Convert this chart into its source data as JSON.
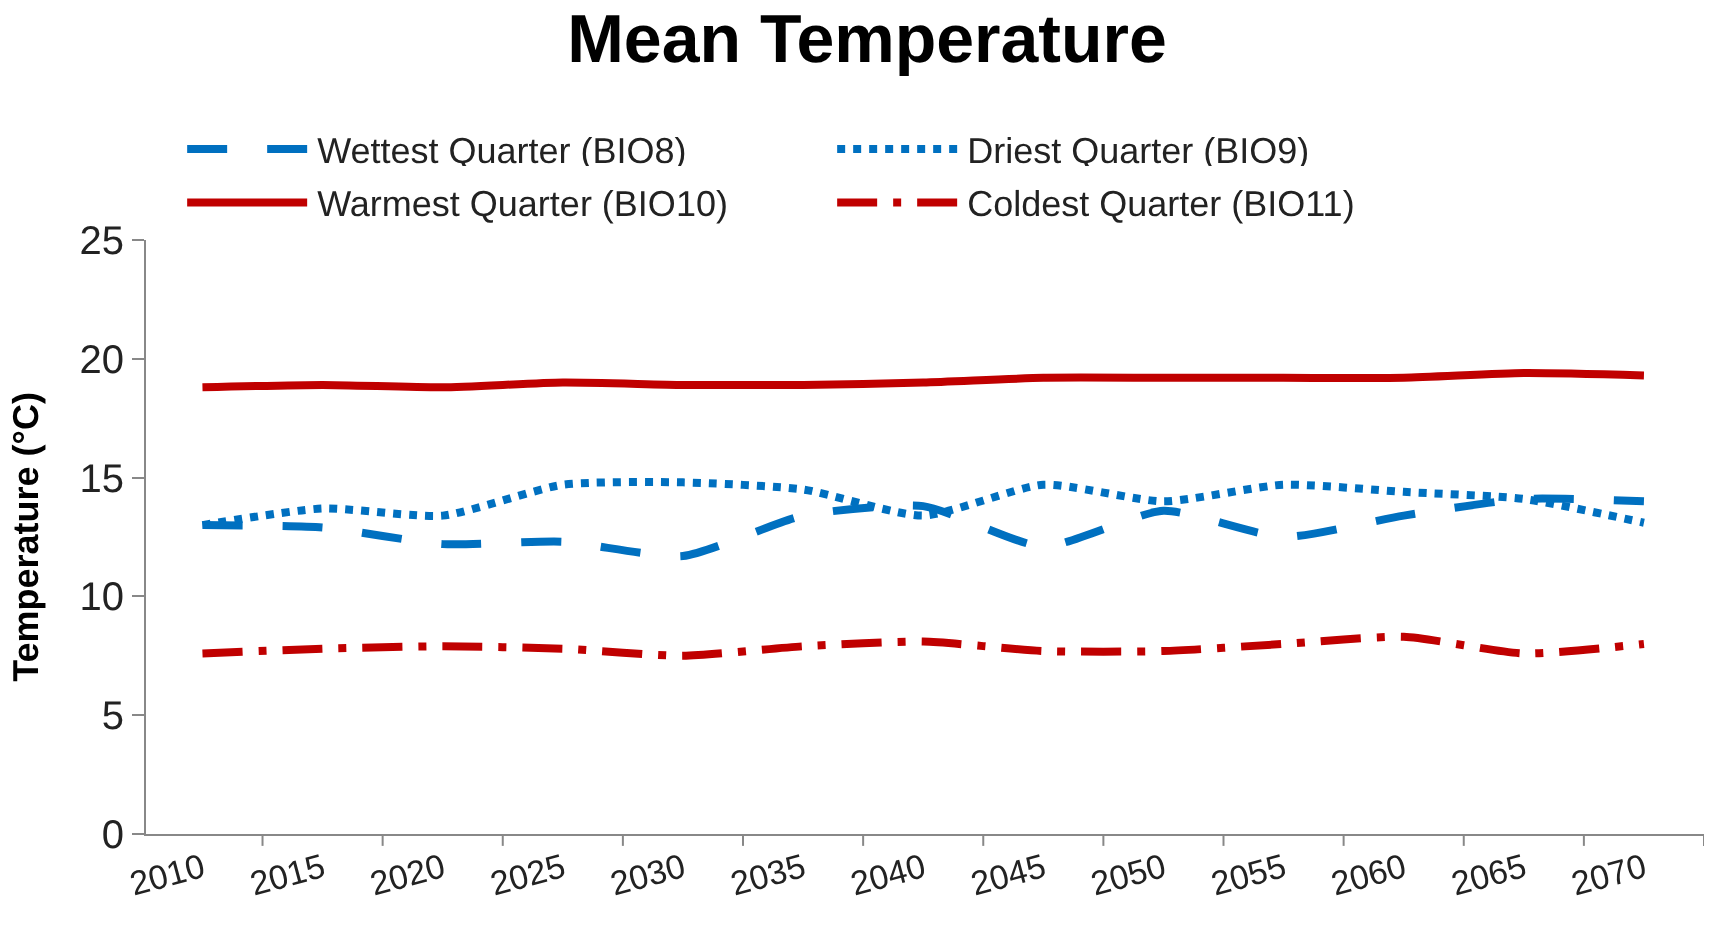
{
  "chart_data": {
    "type": "line",
    "title": "Mean Temperature",
    "ylabel": "Temperature (°C)",
    "categories": [
      "2010",
      "2015",
      "2020",
      "2025",
      "2030",
      "2035",
      "2040",
      "2045",
      "2050",
      "2055",
      "2060",
      "2065",
      "2070"
    ],
    "series": [
      {
        "name": "Wettest Quarter (BIO8)",
        "color": "#0070c0",
        "line_style": "dashed",
        "values": [
          13.0,
          12.9,
          12.2,
          12.3,
          11.7,
          13.4,
          13.8,
          12.1,
          13.6,
          12.5,
          13.4,
          14.1,
          14.0
        ]
      },
      {
        "name": "Driest Quarter (BIO9)",
        "color": "#0070c0",
        "line_style": "dotted",
        "values": [
          13.0,
          13.7,
          13.4,
          14.7,
          14.8,
          14.5,
          13.4,
          14.7,
          14.0,
          14.7,
          14.4,
          14.1,
          13.1
        ]
      },
      {
        "name": "Warmest Quarter (BIO10)",
        "color": "#c00000",
        "line_style": "solid",
        "values": [
          18.8,
          18.9,
          18.8,
          19.0,
          18.9,
          18.9,
          19.0,
          19.2,
          19.2,
          19.2,
          19.2,
          19.4,
          19.3
        ]
      },
      {
        "name": "Coldest Quarter (BIO11)",
        "color": "#c00000",
        "line_style": "dashdot",
        "values": [
          7.6,
          7.8,
          7.9,
          7.8,
          7.5,
          7.9,
          8.1,
          7.7,
          7.7,
          8.0,
          8.3,
          7.6,
          8.0
        ]
      }
    ],
    "ylim": [
      0,
      25
    ],
    "yticks": [
      0,
      5,
      10,
      15,
      20,
      25
    ],
    "legend": "top",
    "marker": "none"
  }
}
